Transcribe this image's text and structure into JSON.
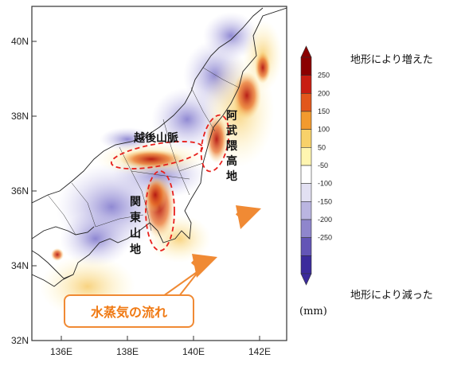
{
  "map": {
    "lat_ticks": [
      "40N",
      "38N",
      "36N",
      "34N",
      "32N"
    ],
    "lon_ticks": [
      "136E",
      "138E",
      "140E",
      "142E"
    ],
    "regions": {
      "echigo": "越後山脈",
      "abukuma": "阿武隈高地",
      "kanto": "関東山地"
    }
  },
  "colorbar": {
    "labels": [
      "250",
      "200",
      "150",
      "100",
      "50",
      "-50",
      "-100",
      "-150",
      "-200",
      "-250"
    ],
    "colors": [
      "#8b0000",
      "#c81e12",
      "#e2571c",
      "#f29a2e",
      "#f8d16a",
      "#fff5b0",
      "#ffffff",
      "#e2e0f2",
      "#bab5e1",
      "#8f86cc",
      "#6355b6",
      "#3b2b9c"
    ],
    "unit": "(mm)"
  },
  "legend": {
    "increase": "地形により増えた",
    "decrease": "地形により減った"
  },
  "annotation": {
    "flow_label": "水蒸気の流れ",
    "arrow_color": "#f08a34"
  }
}
